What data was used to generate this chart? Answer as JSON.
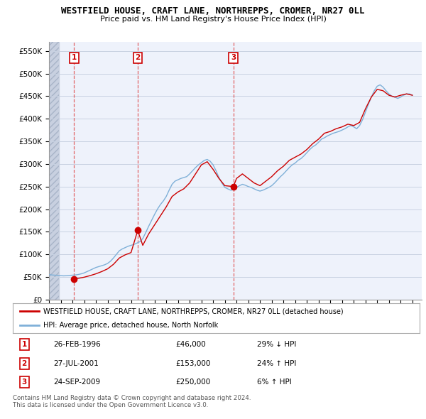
{
  "title": "WESTFIELD HOUSE, CRAFT LANE, NORTHREPPS, CROMER, NR27 0LL",
  "subtitle": "Price paid vs. HM Land Registry's House Price Index (HPI)",
  "ylim": [
    0,
    570000
  ],
  "yticks": [
    0,
    50000,
    100000,
    150000,
    200000,
    250000,
    300000,
    350000,
    400000,
    450000,
    500000,
    550000
  ],
  "ytick_labels": [
    "£0",
    "£50K",
    "£100K",
    "£150K",
    "£200K",
    "£250K",
    "£300K",
    "£350K",
    "£400K",
    "£450K",
    "£500K",
    "£550K"
  ],
  "xlim_start": 1994.0,
  "xlim_end": 2025.8,
  "bg_color": "#eef2fb",
  "hatch_color": "#c8d0e0",
  "grid_color": "#c8d2e2",
  "sale_color": "#cc0000",
  "hpi_color": "#7fb0d8",
  "purchases": [
    {
      "year": 1996.15,
      "price": 46000,
      "label": "1"
    },
    {
      "year": 2001.57,
      "price": 153000,
      "label": "2"
    },
    {
      "year": 2009.73,
      "price": 250000,
      "label": "3"
    }
  ],
  "legend_sale_label": "WESTFIELD HOUSE, CRAFT LANE, NORTHREPPS, CROMER, NR27 0LL (detached house)",
  "legend_hpi_label": "HPI: Average price, detached house, North Norfolk",
  "table_rows": [
    {
      "num": "1",
      "date": "26-FEB-1996",
      "price": "£46,000",
      "vs_hpi": "29% ↓ HPI"
    },
    {
      "num": "2",
      "date": "27-JUL-2001",
      "price": "£153,000",
      "vs_hpi": "24% ↑ HPI"
    },
    {
      "num": "3",
      "date": "24-SEP-2009",
      "price": "£250,000",
      "vs_hpi": "6% ↑ HPI"
    }
  ],
  "footnote": "Contains HM Land Registry data © Crown copyright and database right 2024.\nThis data is licensed under the Open Government Licence v3.0.",
  "hpi_data_years": [
    1994.0,
    1994.25,
    1994.5,
    1994.75,
    1995.0,
    1995.25,
    1995.5,
    1995.75,
    1996.0,
    1996.25,
    1996.5,
    1996.75,
    1997.0,
    1997.25,
    1997.5,
    1997.75,
    1998.0,
    1998.25,
    1998.5,
    1998.75,
    1999.0,
    1999.25,
    1999.5,
    1999.75,
    2000.0,
    2000.25,
    2000.5,
    2000.75,
    2001.0,
    2001.25,
    2001.5,
    2001.75,
    2002.0,
    2002.25,
    2002.5,
    2002.75,
    2003.0,
    2003.25,
    2003.5,
    2003.75,
    2004.0,
    2004.25,
    2004.5,
    2004.75,
    2005.0,
    2005.25,
    2005.5,
    2005.75,
    2006.0,
    2006.25,
    2006.5,
    2006.75,
    2007.0,
    2007.25,
    2007.5,
    2007.75,
    2008.0,
    2008.25,
    2008.5,
    2008.75,
    2009.0,
    2009.25,
    2009.5,
    2009.75,
    2010.0,
    2010.25,
    2010.5,
    2010.75,
    2011.0,
    2011.25,
    2011.5,
    2011.75,
    2012.0,
    2012.25,
    2012.5,
    2012.75,
    2013.0,
    2013.25,
    2013.5,
    2013.75,
    2014.0,
    2014.25,
    2014.5,
    2014.75,
    2015.0,
    2015.25,
    2015.5,
    2015.75,
    2016.0,
    2016.25,
    2016.5,
    2016.75,
    2017.0,
    2017.25,
    2017.5,
    2017.75,
    2018.0,
    2018.25,
    2018.5,
    2018.75,
    2019.0,
    2019.25,
    2019.5,
    2019.75,
    2020.0,
    2020.25,
    2020.5,
    2020.75,
    2021.0,
    2021.25,
    2021.5,
    2021.75,
    2022.0,
    2022.25,
    2022.5,
    2022.75,
    2023.0,
    2023.25,
    2023.5,
    2023.75,
    2024.0,
    2024.25,
    2024.5,
    2024.75,
    2025.0
  ],
  "hpi_data_values": [
    55000,
    54500,
    54000,
    53500,
    53000,
    52500,
    52800,
    53500,
    54000,
    54500,
    55500,
    57000,
    59000,
    62000,
    65000,
    68000,
    71000,
    73000,
    75000,
    77000,
    80000,
    85000,
    92000,
    100000,
    108000,
    112000,
    115000,
    118000,
    120000,
    122000,
    125000,
    128000,
    135000,
    148000,
    162000,
    175000,
    188000,
    200000,
    210000,
    218000,
    228000,
    242000,
    255000,
    262000,
    265000,
    268000,
    270000,
    272000,
    278000,
    285000,
    292000,
    298000,
    303000,
    308000,
    310000,
    306000,
    298000,
    285000,
    270000,
    258000,
    248000,
    245000,
    242000,
    243000,
    248000,
    252000,
    255000,
    253000,
    250000,
    248000,
    245000,
    242000,
    240000,
    242000,
    245000,
    248000,
    252000,
    258000,
    265000,
    272000,
    278000,
    285000,
    292000,
    298000,
    302000,
    308000,
    312000,
    318000,
    325000,
    332000,
    338000,
    342000,
    348000,
    355000,
    358000,
    362000,
    365000,
    368000,
    370000,
    372000,
    375000,
    378000,
    382000,
    385000,
    382000,
    378000,
    385000,
    398000,
    415000,
    432000,
    448000,
    462000,
    472000,
    475000,
    470000,
    462000,
    455000,
    450000,
    448000,
    445000,
    448000,
    452000,
    455000,
    455000,
    452000
  ],
  "sale_years": [
    1996.15,
    1996.5,
    1997.0,
    1997.5,
    1998.0,
    1998.5,
    1999.0,
    1999.5,
    2000.0,
    2000.5,
    2001.0,
    2001.57,
    2002.0,
    2002.5,
    2003.0,
    2003.5,
    2004.0,
    2004.5,
    2005.0,
    2005.5,
    2006.0,
    2006.5,
    2007.0,
    2007.5,
    2008.0,
    2008.5,
    2009.0,
    2009.73,
    2010.0,
    2010.5,
    2011.0,
    2011.5,
    2012.0,
    2012.5,
    2013.0,
    2013.5,
    2014.0,
    2014.5,
    2015.0,
    2015.5,
    2016.0,
    2016.5,
    2017.0,
    2017.5,
    2018.0,
    2018.5,
    2019.0,
    2019.5,
    2020.0,
    2020.5,
    2021.0,
    2021.5,
    2022.0,
    2022.5,
    2023.0,
    2023.5,
    2024.0,
    2024.5,
    2025.0
  ],
  "sale_values": [
    46000,
    47000,
    49500,
    53000,
    57000,
    62000,
    68000,
    78000,
    92000,
    99000,
    104000,
    153000,
    120000,
    145000,
    165000,
    185000,
    205000,
    228000,
    238000,
    245000,
    258000,
    278000,
    298000,
    305000,
    288000,
    268000,
    252000,
    250000,
    268000,
    278000,
    268000,
    258000,
    252000,
    262000,
    272000,
    285000,
    295000,
    308000,
    315000,
    322000,
    332000,
    345000,
    355000,
    368000,
    372000,
    378000,
    382000,
    388000,
    385000,
    392000,
    422000,
    448000,
    465000,
    462000,
    452000,
    448000,
    452000,
    455000,
    452000
  ]
}
